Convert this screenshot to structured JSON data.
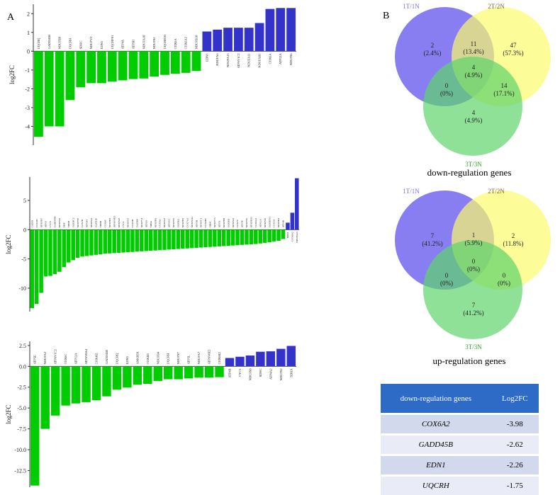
{
  "panel_labels": {
    "a": "A",
    "b": "B"
  },
  "colors": {
    "down": "#00cc00",
    "up": "#3333cc",
    "venn_a": "#7b70ef",
    "venn_b": "#fbfb6c",
    "venn_c": "#5ed46b",
    "table_header": "#2e6bc6"
  },
  "chart_data": [
    {
      "type": "bar",
      "id": "bar1",
      "ylabel": "log2FC",
      "ylim": [
        -5,
        2.5
      ],
      "yticks": [
        -4,
        -3,
        -2,
        -1,
        0,
        1,
        2
      ],
      "categories": [
        "UQCRQ",
        "GADD45B",
        "NDUFB9",
        "UQCRH",
        "SDHC",
        "NDUFV2",
        "EDN1",
        "UQCRFS1",
        "ATP4A",
        "ATP6I1",
        "NDUFA10",
        "NDUFS1",
        "UQCRB10",
        "COX6A",
        "COX6A2",
        "NDUFB10",
        "EDN1",
        "NDUFA6",
        "NDUFA13",
        "ATP6V1C2",
        "NDUFA11",
        "NDUFAB1",
        "COX6A",
        "ATP12A",
        "NDUFS6"
      ],
      "values": [
        -4.55,
        -4.0,
        -4.0,
        -2.6,
        -1.92,
        -1.7,
        -1.7,
        -1.62,
        -1.55,
        -1.48,
        -1.45,
        -1.35,
        -1.26,
        -1.2,
        -1.15,
        -1.05,
        1.05,
        1.15,
        1.25,
        1.25,
        1.25,
        1.5,
        2.25,
        2.3,
        2.3
      ]
    },
    {
      "type": "bar",
      "id": "bar2",
      "ylabel": "log2FC",
      "ylim": [
        -14,
        9
      ],
      "yticks": [
        -10,
        -5,
        0,
        5
      ],
      "categories": [
        "CASP3",
        "COX4I2",
        "NDUFB7",
        "ATP5J",
        "CYCS",
        "GADD45B",
        "NDUFA2",
        "PPIF",
        "SDHD",
        "UQCRC2",
        "NDUFS8",
        "COX7B",
        "ATP5F1",
        "NDUFA4",
        "UQCR10",
        "SDHB",
        "COX6C",
        "NDUFB3",
        "ATP6V0D2",
        "NDUFA8",
        "CYC1",
        "NDUFS3",
        "COX5B",
        "UQCRB",
        "NDUFV1",
        "ATP5O",
        "SDHA",
        "NDUFB5",
        "COX8A",
        "NDUFA1",
        "ATP5G3",
        "NDUFS5",
        "UQCRQ",
        "NDUFB2",
        "COX7A2",
        "NDUFA12",
        "ATP5H",
        "NDUFC1",
        "COX6B1",
        "SDHC",
        "NDUFV3",
        "ATP5L",
        "NDUFB9",
        "UQCRH",
        "NDUFA3",
        "COX7C",
        "ATP5E",
        "NDUFS6",
        "NDUFB11",
        "COX6A1",
        "ATP12A",
        "NDUFA6",
        "UQCRFS1",
        "COX5A",
        "NDUFB1",
        "ATP4B",
        "EDN1",
        "COX6A2",
        "NDUFA13"
      ],
      "values": [
        -13.4,
        -12.7,
        -10.8,
        -8.0,
        -7.9,
        -7.6,
        -7.2,
        -6.4,
        -5.6,
        -5.2,
        -4.8,
        -4.6,
        -4.5,
        -4.4,
        -4.3,
        -4.2,
        -4.1,
        -4.05,
        -4.0,
        -3.95,
        -3.9,
        -3.85,
        -3.8,
        -3.75,
        -3.7,
        -3.65,
        -3.6,
        -3.55,
        -3.5,
        -3.45,
        -3.4,
        -3.35,
        -3.3,
        -3.25,
        -3.2,
        -3.15,
        -3.1,
        -3.05,
        -3.0,
        -2.95,
        -2.9,
        -2.85,
        -2.8,
        -2.75,
        -2.7,
        -2.65,
        -2.6,
        -2.55,
        -2.5,
        -2.45,
        -2.35,
        -2.25,
        -2.15,
        -2.0,
        -1.9,
        -1.6,
        1.2,
        2.9,
        8.8
      ]
    },
    {
      "type": "bar",
      "id": "bar3",
      "ylabel": "log2FC",
      "ylim": [
        -14.5,
        3.0
      ],
      "yticks": [
        -12.5,
        -10.0,
        -7.5,
        -5.0,
        -2.5,
        0.0,
        2.5
      ],
      "categories": [
        "ATP5E",
        "NDUFA2",
        "ATP6V1C2",
        "COX6C",
        "ATP12A",
        "ATP6V0A4",
        "COX4I2",
        "GADD45B",
        "UQCRQ",
        "EDN1",
        "ANKRD1",
        "COX4I1",
        "NDUFB4",
        "UQCRH",
        "NDUFS7",
        "ATP5L",
        "NDUFA7",
        "ATP6V0E2",
        "COX6B2",
        "ATP4B",
        "CYC1",
        "NDUFS8",
        "SDHC",
        "ATP4A2",
        "NDUFS2",
        "SDHA"
      ],
      "values": [
        -14.3,
        -7.5,
        -5.9,
        -4.7,
        -4.45,
        -4.3,
        -4.05,
        -3.6,
        -2.8,
        -2.55,
        -2.2,
        -2.1,
        -1.75,
        -1.55,
        -1.55,
        -1.45,
        -1.35,
        -1.35,
        -1.3,
        1.0,
        1.15,
        1.3,
        1.75,
        1.8,
        2.1,
        2.45
      ]
    }
  ],
  "venn_down": {
    "labels": {
      "a": "1T/1N",
      "b": "2T/2N",
      "c": "3T/3N"
    },
    "regions": {
      "a_only": {
        "count": "2",
        "pct": "(2.4%)"
      },
      "b_only": {
        "count": "47",
        "pct": "(57.3%)"
      },
      "c_only": {
        "count": "4",
        "pct": "(4.9%)"
      },
      "ab": {
        "count": "11",
        "pct": "(13.4%)"
      },
      "ac": {
        "count": "0",
        "pct": "(0%)"
      },
      "bc": {
        "count": "14",
        "pct": "(17.1%)"
      },
      "abc": {
        "count": "4",
        "pct": "(4.9%)"
      }
    },
    "caption": "down-regulation genes"
  },
  "venn_up": {
    "labels": {
      "a": "1T/1N",
      "b": "2T/2N",
      "c": "3T/3N"
    },
    "regions": {
      "a_only": {
        "count": "7",
        "pct": "(41.2%)"
      },
      "b_only": {
        "count": "2",
        "pct": "(11.8%)"
      },
      "c_only": {
        "count": "7",
        "pct": "(41.2%)"
      },
      "ab": {
        "count": "1",
        "pct": "(5.9%)"
      },
      "ac": {
        "count": "0",
        "pct": "(0%)"
      },
      "bc": {
        "count": "0",
        "pct": "(0%)"
      },
      "abc": {
        "count": "0",
        "pct": "(0%)"
      }
    },
    "caption": "up-regulation genes"
  },
  "table": {
    "headers": [
      "down-regulation genes",
      "Log2FC"
    ],
    "rows": [
      {
        "gene": "COX6A2",
        "value": "-3.98"
      },
      {
        "gene": "GADD45B",
        "value": "-2.62"
      },
      {
        "gene": "EDN1",
        "value": "-2.26"
      },
      {
        "gene": "UQCRH",
        "value": "-1.75"
      }
    ]
  }
}
